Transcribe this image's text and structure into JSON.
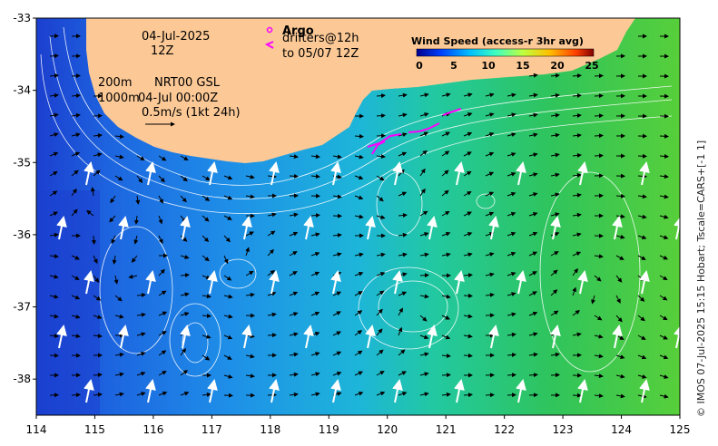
{
  "map": {
    "lon_ticks": [
      "114",
      "115",
      "116",
      "117",
      "118",
      "119",
      "120",
      "121",
      "122",
      "123",
      "124",
      "125"
    ],
    "lat_ticks": [
      "-33",
      "-34",
      "-35",
      "-36",
      "-37",
      "-38"
    ],
    "lon_range": [
      114,
      125
    ],
    "lat_range": [
      -38.5,
      -33
    ],
    "land_color": "#fcc996",
    "ocean_colors": [
      "#1c3fcf",
      "#1d7fe6",
      "#1db5d9",
      "#22c9a0",
      "#2fc45c",
      "#57cf3a"
    ],
    "contour_color": "#ffffff"
  },
  "annotations": {
    "date_line": "04-Jul-2025",
    "time_line": "12Z",
    "depth_top": "200m",
    "product": "NRT00 GSL",
    "depth_bottom": "1000m",
    "valid_time": "04-Jul 00:00Z",
    "scale_label": "0.5m/s (1kt 24h)"
  },
  "legend": {
    "argo_label": "Argo",
    "drifters_label": "drifters@12h",
    "drifters_to": "to 05/07 12Z",
    "argo_color": "#ff00ff",
    "drifter_color": "#ff00ff"
  },
  "colorbar": {
    "title": "Wind Speed (access-r 3hr avg)",
    "ticks": [
      "0",
      "5",
      "10",
      "15",
      "20",
      "25"
    ],
    "colors": [
      "#00008f",
      "#0040ff",
      "#00bfff",
      "#40ffbf",
      "#bfff40",
      "#ffbf00",
      "#ff4000",
      "#800000"
    ]
  },
  "credit": "© IMOS 07-Jul-2025 15:15 Hobart; Tscale=CARS+[-1 1]"
}
